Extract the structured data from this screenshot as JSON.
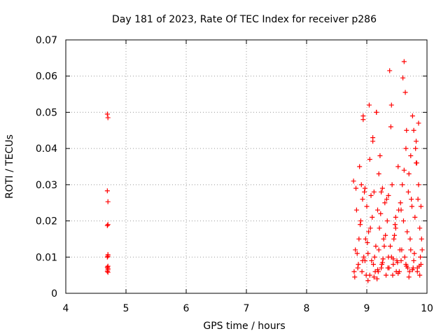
{
  "chart_data": {
    "type": "scatter",
    "title": "Day 181 of 2023, Rate Of TEC Index for receiver p286",
    "xlabel": "GPS time / hours",
    "ylabel": "ROTI / TECUs",
    "xlim": [
      4,
      10
    ],
    "ylim": [
      0,
      0.07
    ],
    "x_ticks": [
      4,
      5,
      6,
      7,
      8,
      9,
      10
    ],
    "x_tick_labels": [
      "4",
      "5",
      "6",
      "7",
      "8",
      "9",
      "10"
    ],
    "y_ticks": [
      0,
      0.01,
      0.02,
      0.03,
      0.04,
      0.05,
      0.06,
      0.07
    ],
    "y_tick_labels": [
      "0",
      "0.01",
      "0.02",
      "0.03",
      "0.04",
      "0.05",
      "0.06",
      "0.07"
    ],
    "grid": true,
    "marker": "+",
    "color": "#ff0000",
    "series": [
      {
        "name": "ROTI",
        "x": [
          4.69,
          4.7,
          4.69,
          4.7,
          4.7,
          4.69,
          4.7,
          4.7,
          4.69,
          4.7,
          4.69,
          4.7,
          4.7,
          4.69,
          4.7,
          8.78,
          8.8,
          8.82,
          8.84,
          8.86,
          8.88,
          8.9,
          8.92,
          8.94,
          8.96,
          8.98,
          9.0,
          9.02,
          9.04,
          9.06,
          9.08,
          9.1,
          9.12,
          9.14,
          9.16,
          9.18,
          9.2,
          9.22,
          9.24,
          9.26,
          9.28,
          9.3,
          9.32,
          9.34,
          9.36,
          9.38,
          9.4,
          9.42,
          9.44,
          9.46,
          9.48,
          9.5,
          9.52,
          9.54,
          9.56,
          9.58,
          9.6,
          9.62,
          9.64,
          9.66,
          9.68,
          9.7,
          9.72,
          9.74,
          9.76,
          9.78,
          9.8,
          9.82,
          9.84,
          9.86,
          9.88,
          9.9,
          9.92,
          8.79,
          8.83,
          8.87,
          8.91,
          8.95,
          8.99,
          9.03,
          9.07,
          9.11,
          9.15,
          9.19,
          9.23,
          9.27,
          9.31,
          9.35,
          9.39,
          9.43,
          9.47,
          9.51,
          9.55,
          9.59,
          9.63,
          9.67,
          9.71,
          9.75,
          9.79,
          9.83,
          9.87,
          9.91,
          8.81,
          8.85,
          8.89,
          8.93,
          8.97,
          9.01,
          9.05,
          9.09,
          9.13,
          9.17,
          9.21,
          9.25,
          9.29,
          9.33,
          9.37,
          9.41,
          9.45,
          9.49,
          9.53,
          9.57,
          9.61,
          9.65,
          9.69,
          9.73,
          9.77,
          9.81,
          9.85,
          9.89,
          8.94,
          8.97,
          9.05,
          9.1,
          9.16,
          9.2,
          9.24,
          9.36,
          9.41,
          9.48,
          9.57,
          9.62,
          9.65,
          9.73,
          9.78,
          9.82,
          9.86,
          9.9,
          9.88,
          9.84,
          8.93,
          9.02,
          9.12,
          9.18,
          9.26,
          9.44,
          9.52,
          9.66,
          9.7,
          9.76
        ],
        "y": [
          0.0495,
          0.0485,
          0.0283,
          0.0253,
          0.019,
          0.0187,
          0.0107,
          0.0103,
          0.01,
          0.0075,
          0.0072,
          0.0069,
          0.0065,
          0.0061,
          0.0058,
          0.031,
          0.0045,
          0.029,
          0.011,
          0.008,
          0.035,
          0.02,
          0.006,
          0.049,
          0.028,
          0.015,
          0.024,
          0.0035,
          0.052,
          0.018,
          0.009,
          0.043,
          0.028,
          0.006,
          0.05,
          0.023,
          0.012,
          0.038,
          0.007,
          0.029,
          0.015,
          0.025,
          0.005,
          0.02,
          0.01,
          0.0615,
          0.046,
          0.03,
          0.008,
          0.016,
          0.021,
          0.009,
          0.035,
          0.006,
          0.025,
          0.012,
          0.0595,
          0.064,
          0.0555,
          0.045,
          0.007,
          0.033,
          0.015,
          0.026,
          0.049,
          0.009,
          0.021,
          0.042,
          0.006,
          0.03,
          0.018,
          0.008,
          0.012,
          0.006,
          0.023,
          0.015,
          0.03,
          0.01,
          0.005,
          0.017,
          0.027,
          0.008,
          0.013,
          0.006,
          0.022,
          0.0095,
          0.016,
          0.007,
          0.013,
          0.005,
          0.019,
          0.0085,
          0.012,
          0.03,
          0.01,
          0.017,
          0.006,
          0.024,
          0.011,
          0.036,
          0.0075,
          0.015,
          0.012,
          0.007,
          0.019,
          0.026,
          0.009,
          0.014,
          0.005,
          0.021,
          0.01,
          0.004,
          0.018,
          0.008,
          0.013,
          0.026,
          0.007,
          0.01,
          0.015,
          0.006,
          0.023,
          0.009,
          0.02,
          0.008,
          0.028,
          0.012,
          0.007,
          0.04,
          0.026,
          0.01,
          0.048,
          0.029,
          0.037,
          0.042,
          0.05,
          0.033,
          0.028,
          0.027,
          0.052,
          0.018,
          0.023,
          0.034,
          0.04,
          0.038,
          0.045,
          0.036,
          0.047,
          0.024,
          0.005,
          0.007,
          0.009,
          0.011,
          0.0045,
          0.0065,
          0.0085,
          0.0095,
          0.0055,
          0.0075,
          0.0045,
          0.0065
        ]
      }
    ]
  }
}
